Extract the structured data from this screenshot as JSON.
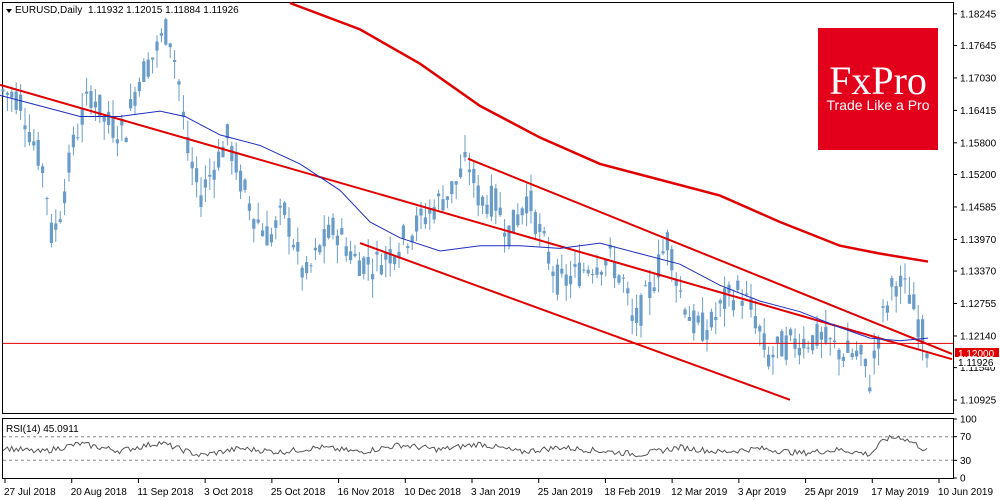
{
  "header": {
    "symbol": "EURUSD,Daily",
    "ohlc": "1.11932 1.12015 1.11884 1.11926"
  },
  "logo": {
    "name": "FxPro",
    "tagline": "Trade Like a Pro",
    "color": "#e3001b"
  },
  "rsi": {
    "label": "RSI(14) 45.0911",
    "levels": [
      "70",
      "30"
    ],
    "axis_ticks": [
      "100",
      "70",
      "30",
      "0"
    ]
  },
  "current": {
    "level_label": "1.12000",
    "price_label": "1.11926"
  },
  "colors": {
    "candle": "#6a9cca",
    "ma_short": "#1f2dbf",
    "ma_long": "#e00000",
    "channel": "#e00000",
    "level": "#e00000",
    "rsi_line": "#555555"
  },
  "chart_data": {
    "type": "candlestick",
    "title": "",
    "y_ticks": [
      "1.18245",
      "1.17645",
      "1.17030",
      "1.16415",
      "1.15800",
      "1.15200",
      "1.14585",
      "1.13970",
      "1.13370",
      "1.12755",
      "1.12140",
      "1.11540",
      "1.10925"
    ],
    "ylim": [
      1.1068,
      1.1845
    ],
    "x_ticks": [
      "27 Jul 2018",
      "20 Aug 2018",
      "11 Sep 2018",
      "3 Oct 2018",
      "25 Oct 2018",
      "16 Nov 2018",
      "10 Dec 2018",
      "3 Jan 2019",
      "25 Jan 2019",
      "18 Feb 2019",
      "12 Mar 2019",
      "3 Apr 2019",
      "25 Apr 2019",
      "17 May 2019",
      "10 Jun 2019"
    ],
    "price_path": [
      [
        0,
        1.168
      ],
      [
        20,
        1.1665
      ],
      [
        30,
        1.16
      ],
      [
        45,
        1.152
      ],
      [
        52,
        1.1395
      ],
      [
        60,
        1.145
      ],
      [
        75,
        1.159
      ],
      [
        92,
        1.168
      ],
      [
        105,
        1.162
      ],
      [
        125,
        1.16
      ],
      [
        138,
        1.17
      ],
      [
        155,
        1.175
      ],
      [
        168,
        1.18
      ],
      [
        178,
        1.171
      ],
      [
        188,
        1.156
      ],
      [
        200,
        1.148
      ],
      [
        215,
        1.154
      ],
      [
        228,
        1.159
      ],
      [
        240,
        1.151
      ],
      [
        255,
        1.144
      ],
      [
        270,
        1.14
      ],
      [
        285,
        1.145
      ],
      [
        305,
        1.132
      ],
      [
        320,
        1.138
      ],
      [
        335,
        1.142
      ],
      [
        355,
        1.136
      ],
      [
        375,
        1.135
      ],
      [
        395,
        1.138
      ],
      [
        410,
        1.141
      ],
      [
        425,
        1.144
      ],
      [
        440,
        1.147
      ],
      [
        455,
        1.15
      ],
      [
        468,
        1.1545
      ],
      [
        480,
        1.147
      ],
      [
        495,
        1.147
      ],
      [
        510,
        1.141
      ],
      [
        528,
        1.148
      ],
      [
        545,
        1.138
      ],
      [
        560,
        1.131
      ],
      [
        575,
        1.133
      ],
      [
        590,
        1.135
      ],
      [
        610,
        1.136
      ],
      [
        625,
        1.131
      ],
      [
        633,
        1.123
      ],
      [
        650,
        1.13
      ],
      [
        668,
        1.14
      ],
      [
        680,
        1.13
      ],
      [
        695,
        1.123
      ],
      [
        710,
        1.123
      ],
      [
        725,
        1.128
      ],
      [
        740,
        1.13
      ],
      [
        755,
        1.125
      ],
      [
        768,
        1.117
      ],
      [
        782,
        1.1195
      ],
      [
        800,
        1.1205
      ],
      [
        820,
        1.121
      ],
      [
        840,
        1.1185
      ],
      [
        860,
        1.1175
      ],
      [
        870,
        1.113
      ],
      [
        880,
        1.123
      ],
      [
        895,
        1.132
      ],
      [
        910,
        1.129
      ],
      [
        920,
        1.123
      ],
      [
        928,
        1.1193
      ]
    ],
    "moving_average_short": [
      [
        0,
        1.167
      ],
      [
        40,
        1.165
      ],
      [
        80,
        1.163
      ],
      [
        120,
        1.163
      ],
      [
        160,
        1.164
      ],
      [
        185,
        1.163
      ],
      [
        220,
        1.1595
      ],
      [
        260,
        1.1575
      ],
      [
        300,
        1.154
      ],
      [
        340,
        1.149
      ],
      [
        370,
        1.143
      ],
      [
        400,
        1.14
      ],
      [
        440,
        1.1375
      ],
      [
        480,
        1.1385
      ],
      [
        520,
        1.1385
      ],
      [
        560,
        1.138
      ],
      [
        600,
        1.139
      ],
      [
        640,
        1.137
      ],
      [
        680,
        1.135
      ],
      [
        720,
        1.131
      ],
      [
        760,
        1.128
      ],
      [
        800,
        1.126
      ],
      [
        840,
        1.123
      ],
      [
        870,
        1.121
      ],
      [
        900,
        1.1205
      ],
      [
        928,
        1.121
      ]
    ],
    "moving_average_long": [
      [
        290,
        1.1845
      ],
      [
        360,
        1.1795
      ],
      [
        420,
        1.173
      ],
      [
        480,
        1.165
      ],
      [
        540,
        1.159
      ],
      [
        600,
        1.154
      ],
      [
        660,
        1.151
      ],
      [
        720,
        1.148
      ],
      [
        780,
        1.143
      ],
      [
        840,
        1.1385
      ],
      [
        880,
        1.137
      ],
      [
        928,
        1.1355
      ]
    ],
    "channel_lines": [
      {
        "from": [
          0,
          1.169
        ],
        "to": [
          952,
          1.117
        ]
      },
      {
        "from": [
          468,
          1.155
        ],
        "to": [
          952,
          1.118
        ]
      },
      {
        "from": [
          360,
          1.139
        ],
        "to": [
          790,
          1.1093
        ]
      }
    ],
    "horizontal_level": 1.12,
    "rsi_path": [
      [
        0,
        52
      ],
      [
        40,
        44
      ],
      [
        80,
        58
      ],
      [
        120,
        46
      ],
      [
        160,
        60
      ],
      [
        200,
        38
      ],
      [
        240,
        50
      ],
      [
        280,
        44
      ],
      [
        320,
        52
      ],
      [
        360,
        44
      ],
      [
        400,
        56
      ],
      [
        440,
        48
      ],
      [
        480,
        58
      ],
      [
        520,
        44
      ],
      [
        560,
        52
      ],
      [
        600,
        46
      ],
      [
        640,
        40
      ],
      [
        680,
        52
      ],
      [
        720,
        44
      ],
      [
        760,
        50
      ],
      [
        800,
        42
      ],
      [
        840,
        48
      ],
      [
        870,
        40
      ],
      [
        885,
        66
      ],
      [
        900,
        70
      ],
      [
        915,
        58
      ],
      [
        928,
        45
      ]
    ]
  }
}
